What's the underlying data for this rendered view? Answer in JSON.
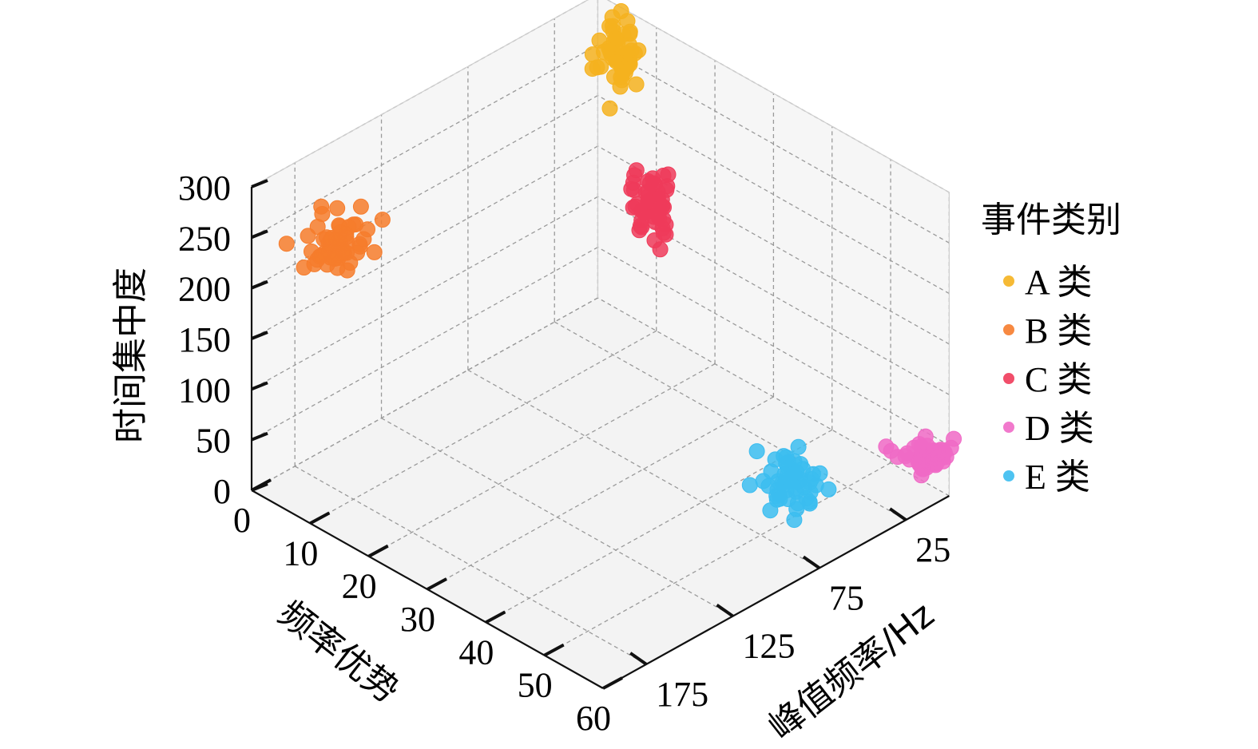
{
  "chart_data": {
    "type": "scatter",
    "subtype": "3d-scatter",
    "title": "",
    "axes": {
      "x": {
        "label": "频率优势",
        "ticks": [
          "0",
          "10",
          "20",
          "30",
          "40",
          "50",
          "60"
        ],
        "range": [
          0,
          60
        ]
      },
      "y": {
        "label": "峰值频率/Hz",
        "ticks": [
          "25",
          "75",
          "125",
          "175"
        ],
        "range": [
          0,
          200
        ]
      },
      "z": {
        "label": "时间集中度",
        "ticks": [
          "0",
          "50",
          "100",
          "150",
          "200",
          "250",
          "300"
        ],
        "range": [
          0,
          300
        ]
      }
    },
    "grid": true,
    "legend": {
      "title": "事件类别",
      "placement": "right",
      "entries": [
        {
          "name": "A 类",
          "color": "#f5b21f"
        },
        {
          "name": "B 类",
          "color": "#f67c2c"
        },
        {
          "name": "C 类",
          "color": "#ef3b5a"
        },
        {
          "name": "D 类",
          "color": "#f06ac6"
        },
        {
          "name": "E 类",
          "color": "#3bbdf0"
        }
      ]
    },
    "series": [
      {
        "name": "A 类",
        "center": {
          "x": 5,
          "y": 5,
          "z": 260
        },
        "spread": {
          "x": 2.2,
          "y": 6,
          "z": 28
        },
        "count": 55
      },
      {
        "name": "B 类",
        "center": {
          "x": 0,
          "y": 150,
          "z": 200
        },
        "spread": {
          "x": 2.0,
          "y": 14,
          "z": 20
        },
        "count": 55
      },
      {
        "name": "C 类",
        "center": {
          "x": 10,
          "y": 5,
          "z": 130
        },
        "spread": {
          "x": 2.5,
          "y": 6,
          "z": 22
        },
        "count": 55
      },
      {
        "name": "D 类",
        "center": {
          "x": 60,
          "y": 10,
          "z": 45
        },
        "spread": {
          "x": 3.0,
          "y": 9,
          "z": 10
        },
        "count": 55
      },
      {
        "name": "E 类",
        "center": {
          "x": 50,
          "y": 60,
          "z": 40
        },
        "spread": {
          "x": 3.0,
          "y": 9,
          "z": 18
        },
        "count": 55
      }
    ]
  }
}
